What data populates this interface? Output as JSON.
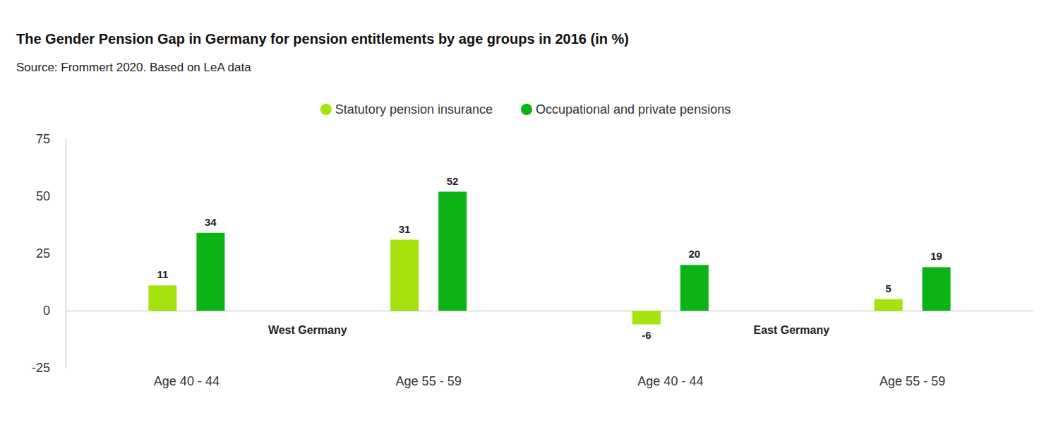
{
  "chart_data": {
    "type": "bar",
    "title": "The Gender Pension Gap in Germany for pension entitlements by age groups in 2016 (in %)",
    "subtitle": "Source: Frommert 2020. Based on LeA data",
    "categories": [
      "Age 40 - 44",
      "Age 55 - 59",
      "Age 40 - 44",
      "Age 55 - 59"
    ],
    "group_labels": [
      "West Germany",
      "East Germany"
    ],
    "series": [
      {
        "name": "Statutory pension insurance",
        "color": "#a6e30e",
        "values": [
          11,
          31,
          -6,
          5
        ]
      },
      {
        "name": "Occupational and private pensions",
        "color": "#0cb316",
        "values": [
          34,
          52,
          20,
          19
        ]
      }
    ],
    "ylim": [
      -25,
      75
    ],
    "yticks": [
      -25,
      0,
      25,
      50,
      75
    ],
    "grid": false,
    "legend": "top",
    "data_labels": true
  }
}
